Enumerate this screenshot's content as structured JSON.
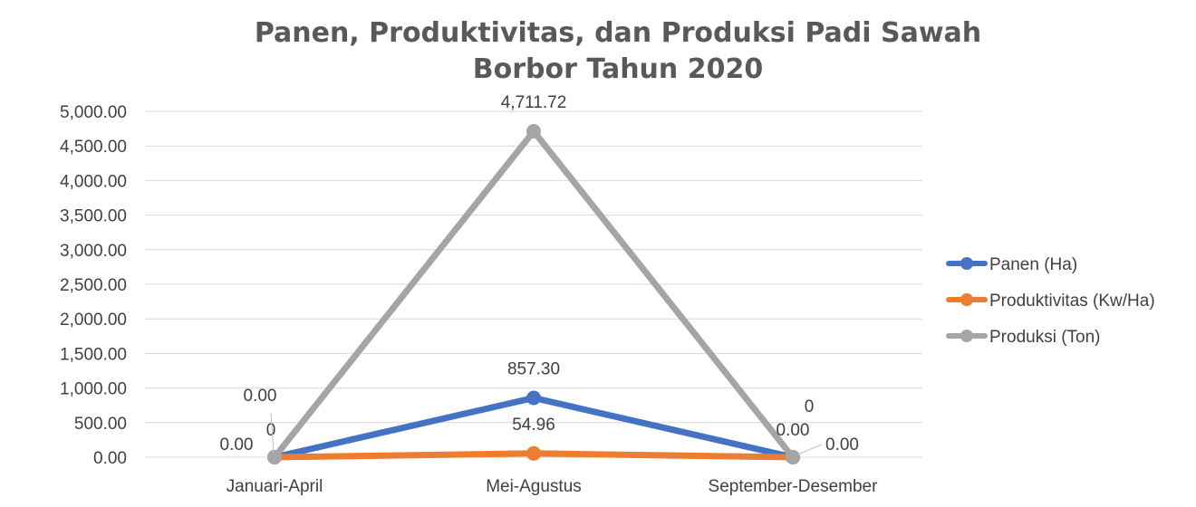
{
  "chart_data": {
    "type": "line",
    "title_lines": [
      "Panen, Produktivitas, dan Produksi Padi Sawah",
      "Borbor Tahun 2020"
    ],
    "categories": [
      "Januari-April",
      "Mei-Agustus",
      "September-Desember"
    ],
    "ylim": [
      0,
      5000
    ],
    "yticks": [
      0,
      500,
      1000,
      1500,
      2000,
      2500,
      3000,
      3500,
      4000,
      4500,
      5000
    ],
    "ytick_labels": [
      "0.00",
      "500.00",
      "1,000.00",
      "1,500.00",
      "2,000.00",
      "2,500.00",
      "3,000.00",
      "3,500.00",
      "4,000.00",
      "4,500.00",
      "5,000.00"
    ],
    "grid": true,
    "legend_position": "right",
    "series": [
      {
        "name": "Panen (Ha)",
        "values": [
          0,
          857.3,
          0
        ],
        "labels": [
          "0.00",
          "857.30",
          "0.00"
        ],
        "color": "#4472C4"
      },
      {
        "name": "Produktivitas (Kw/Ha)",
        "values": [
          0,
          54.96,
          0
        ],
        "labels": [
          "0",
          "54.96",
          "0.00"
        ],
        "color": "#ED7D31"
      },
      {
        "name": "Produksi (Ton)",
        "values": [
          0,
          4711.72,
          0
        ],
        "labels": [
          "0.00",
          "4,711.72",
          "0"
        ],
        "color": "#A5A5A5"
      }
    ]
  }
}
